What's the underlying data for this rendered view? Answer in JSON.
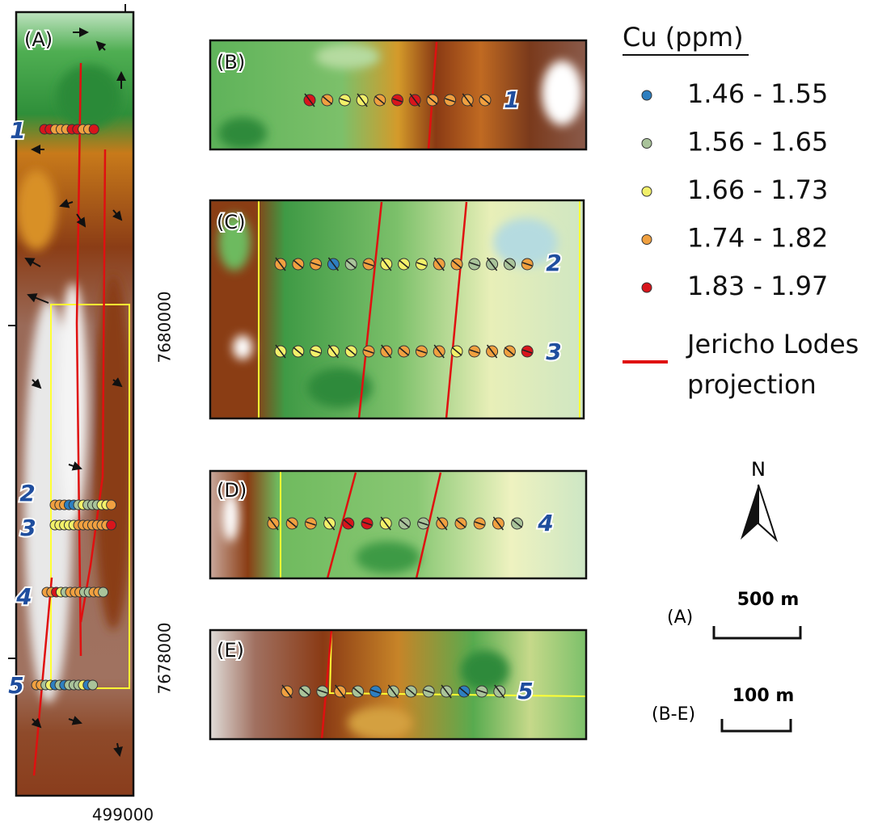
{
  "panels": [
    "(A)",
    "(B)",
    "(C)",
    "(D)",
    "(E)"
  ],
  "line_labels": [
    "1",
    "2",
    "3",
    "4",
    "5"
  ],
  "coordinates": {
    "northing": [
      7680000,
      7678000
    ],
    "easting": [
      499000
    ]
  },
  "legend": {
    "title": "Cu (ppm)",
    "classes": [
      {
        "label": "1.46 - 1.55",
        "color": "#2e7fc0"
      },
      {
        "label": "1.56 - 1.65",
        "color": "#a9c39a"
      },
      {
        "label": "1.66 - 1.73",
        "color": "#f2f06a"
      },
      {
        "label": "1.74 - 1.82",
        "color": "#f0a040"
      },
      {
        "label": "1.83 - 1.97",
        "color": "#d8151c"
      }
    ],
    "lode_label": [
      "Jericho Lodes",
      "projection"
    ],
    "lode_color": "#e01010"
  },
  "north": "N",
  "scale_bars": [
    {
      "panel": "(A)",
      "length": "500 m"
    },
    {
      "panel": "(B-E)",
      "length": "100 m"
    }
  ]
}
